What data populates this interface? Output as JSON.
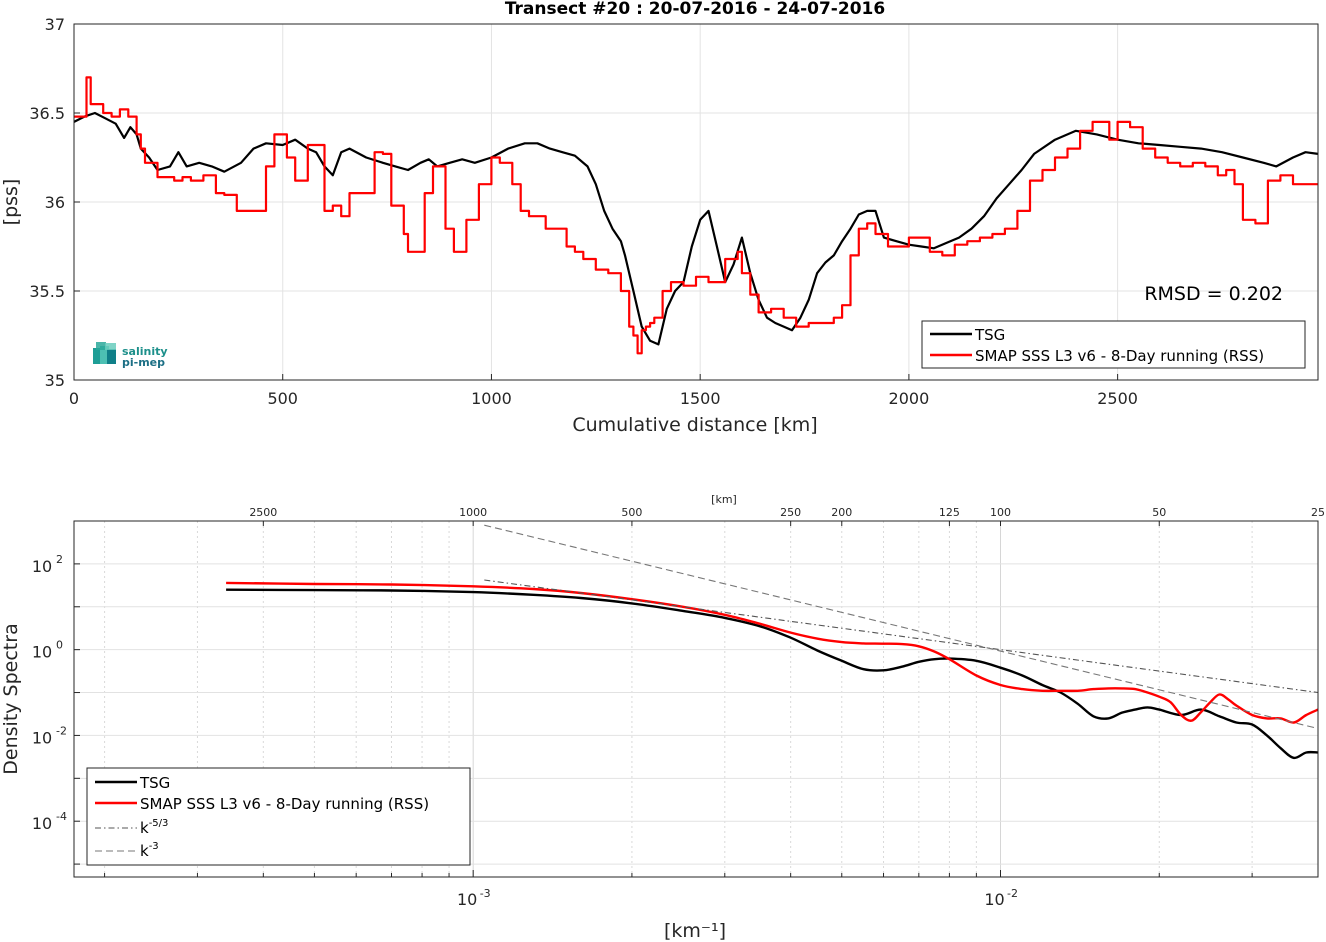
{
  "chart_data": [
    {
      "type": "line",
      "title": "Transect #20 : 20-07-2016 - 24-07-2016",
      "xlabel": "Cumulative distance [km]",
      "ylabel": "[pss]",
      "xlim": [
        0,
        2980
      ],
      "ylim": [
        35,
        37
      ],
      "xticks": [
        0,
        500,
        1000,
        1500,
        2000,
        2500
      ],
      "yticks": [
        35,
        35.5,
        36,
        36.5,
        37
      ],
      "xtick_labels": [
        "0",
        "500",
        "1000",
        "1500",
        "2000",
        "2500"
      ],
      "ytick_labels": [
        "35",
        "35.5",
        "36",
        "36.5",
        "37"
      ],
      "grid": true,
      "legend_position": "bottom-right",
      "annotation": "RMSD = 0.202",
      "logo": {
        "line1": "salinity",
        "line2": "pi-mep"
      },
      "series": [
        {
          "name": "TSG",
          "color": "#000000",
          "style": "line",
          "x": [
            0,
            25,
            50,
            75,
            100,
            120,
            135,
            150,
            160,
            180,
            200,
            230,
            250,
            270,
            300,
            330,
            360,
            400,
            430,
            460,
            500,
            530,
            560,
            580,
            600,
            620,
            640,
            660,
            700,
            740,
            770,
            800,
            830,
            850,
            870,
            900,
            930,
            960,
            1000,
            1040,
            1080,
            1110,
            1140,
            1170,
            1200,
            1230,
            1250,
            1270,
            1290,
            1310,
            1320,
            1340,
            1360,
            1380,
            1400,
            1420,
            1440,
            1460,
            1480,
            1500,
            1520,
            1540,
            1560,
            1580,
            1600,
            1620,
            1640,
            1660,
            1680,
            1700,
            1720,
            1740,
            1760,
            1780,
            1800,
            1820,
            1840,
            1860,
            1880,
            1900,
            1920,
            1940,
            1970,
            2000,
            2030,
            2060,
            2090,
            2120,
            2150,
            2180,
            2210,
            2240,
            2270,
            2300,
            2350,
            2400,
            2450,
            2500,
            2550,
            2600,
            2650,
            2700,
            2750,
            2800,
            2850,
            2880,
            2920,
            2950,
            2980
          ],
          "y": [
            36.45,
            36.48,
            36.5,
            36.47,
            36.44,
            36.36,
            36.42,
            36.38,
            36.3,
            36.25,
            36.18,
            36.2,
            36.28,
            36.2,
            36.22,
            36.2,
            36.17,
            36.22,
            36.3,
            36.33,
            36.32,
            36.35,
            36.3,
            36.28,
            36.2,
            36.15,
            36.28,
            36.3,
            36.25,
            36.22,
            36.2,
            36.18,
            36.22,
            36.24,
            36.2,
            36.22,
            36.24,
            36.22,
            36.25,
            36.3,
            36.33,
            36.33,
            36.3,
            36.28,
            36.26,
            36.2,
            36.1,
            35.95,
            35.85,
            35.78,
            35.7,
            35.5,
            35.3,
            35.22,
            35.2,
            35.4,
            35.5,
            35.55,
            35.75,
            35.9,
            35.95,
            35.75,
            35.55,
            35.65,
            35.8,
            35.6,
            35.45,
            35.35,
            35.32,
            35.3,
            35.28,
            35.35,
            35.45,
            35.6,
            35.66,
            35.7,
            35.78,
            35.85,
            35.93,
            35.95,
            35.95,
            35.8,
            35.78,
            35.76,
            35.75,
            35.74,
            35.77,
            35.8,
            35.85,
            35.92,
            36.02,
            36.1,
            36.18,
            36.27,
            36.35,
            36.4,
            36.38,
            36.35,
            36.33,
            36.32,
            36.31,
            36.3,
            36.28,
            36.25,
            36.22,
            36.2,
            36.25,
            36.28,
            36.27
          ]
        },
        {
          "name": "SMAP SSS L3 v6 - 8-Day running (RSS)",
          "color": "#ff0000",
          "style": "step",
          "x": [
            0,
            30,
            40,
            70,
            90,
            110,
            130,
            150,
            160,
            170,
            200,
            240,
            260,
            280,
            310,
            340,
            360,
            390,
            420,
            460,
            480,
            510,
            530,
            560,
            600,
            620,
            640,
            660,
            700,
            720,
            740,
            760,
            790,
            800,
            840,
            860,
            880,
            890,
            910,
            940,
            970,
            1000,
            1020,
            1050,
            1070,
            1090,
            1100,
            1130,
            1160,
            1180,
            1200,
            1220,
            1250,
            1280,
            1310,
            1330,
            1340,
            1350,
            1360,
            1370,
            1380,
            1390,
            1410,
            1430,
            1460,
            1490,
            1520,
            1560,
            1590,
            1600,
            1620,
            1640,
            1670,
            1700,
            1730,
            1760,
            1800,
            1820,
            1840,
            1860,
            1880,
            1900,
            1920,
            1950,
            2000,
            2050,
            2080,
            2110,
            2140,
            2170,
            2200,
            2230,
            2260,
            2290,
            2320,
            2350,
            2380,
            2410,
            2440,
            2480,
            2500,
            2530,
            2560,
            2590,
            2620,
            2650,
            2680,
            2710,
            2740,
            2760,
            2780,
            2800,
            2830,
            2860,
            2890,
            2920,
            2950,
            2980
          ],
          "y": [
            36.48,
            36.7,
            36.55,
            36.5,
            36.48,
            36.52,
            36.48,
            36.38,
            36.3,
            36.22,
            36.14,
            36.12,
            36.14,
            36.12,
            36.15,
            36.05,
            36.04,
            35.95,
            35.95,
            36.2,
            36.38,
            36.25,
            36.12,
            36.32,
            35.95,
            35.98,
            35.92,
            36.05,
            36.05,
            36.28,
            36.27,
            35.98,
            35.82,
            35.72,
            36.05,
            36.2,
            36.2,
            35.85,
            35.72,
            35.9,
            36.1,
            36.25,
            36.22,
            36.1,
            35.95,
            35.92,
            35.92,
            35.85,
            35.85,
            35.75,
            35.72,
            35.68,
            35.62,
            35.6,
            35.5,
            35.3,
            35.25,
            35.15,
            35.28,
            35.3,
            35.32,
            35.35,
            35.5,
            35.55,
            35.53,
            35.58,
            35.55,
            35.68,
            35.72,
            35.6,
            35.48,
            35.38,
            35.4,
            35.35,
            35.3,
            35.32,
            35.32,
            35.35,
            35.42,
            35.7,
            35.85,
            35.88,
            35.82,
            35.75,
            35.8,
            35.72,
            35.7,
            35.76,
            35.78,
            35.8,
            35.82,
            35.85,
            35.95,
            36.12,
            36.18,
            36.25,
            36.3,
            36.4,
            36.45,
            36.35,
            36.45,
            36.42,
            36.3,
            36.25,
            36.22,
            36.2,
            36.22,
            36.2,
            36.15,
            36.18,
            36.1,
            35.9,
            35.88,
            36.12,
            36.15,
            36.1,
            36.1,
            36.1
          ]
        }
      ]
    },
    {
      "type": "line",
      "xscale": "log",
      "yscale": "log",
      "xlabel": "[km⁻¹]",
      "ylabel": "Density Spectra",
      "top_axis_label": "[km]",
      "xlim": [
        0.000175,
        0.04
      ],
      "ylim": [
        5e-06,
        1000
      ],
      "xtick_labels": [
        {
          "value": 0.001,
          "base": "10",
          "exp": "-3"
        },
        {
          "value": 0.01,
          "base": "10",
          "exp": "-2"
        }
      ],
      "ytick_labels": [
        {
          "value": 100,
          "base": "10",
          "exp": "2"
        },
        {
          "value": 1,
          "base": "10",
          "exp": "0"
        },
        {
          "value": 0.01,
          "base": "10",
          "exp": "-2"
        },
        {
          "value": 0.0001,
          "base": "10",
          "exp": "-4"
        }
      ],
      "top_ticks_km": [
        2500,
        1000,
        500,
        250,
        200,
        125,
        100,
        50,
        25
      ],
      "grid": true,
      "legend_position": "bottom-left",
      "series": [
        {
          "name": "TSG",
          "color": "#000000",
          "style": "solid",
          "x": [
            0.00034,
            0.0005,
            0.0007,
            0.001,
            0.0013,
            0.0016,
            0.002,
            0.0025,
            0.003,
            0.0035,
            0.004,
            0.0045,
            0.005,
            0.0055,
            0.006,
            0.0065,
            0.007,
            0.0075,
            0.008,
            0.009,
            0.01,
            0.011,
            0.012,
            0.013,
            0.014,
            0.015,
            0.016,
            0.017,
            0.018,
            0.019,
            0.02,
            0.022,
            0.024,
            0.026,
            0.028,
            0.03,
            0.032,
            0.034,
            0.036,
            0.038,
            0.04
          ],
          "y": [
            25,
            24.5,
            24,
            22,
            19,
            16,
            12,
            8,
            5.5,
            3.5,
            1.9,
            0.95,
            0.55,
            0.35,
            0.33,
            0.4,
            0.52,
            0.6,
            0.62,
            0.55,
            0.38,
            0.25,
            0.15,
            0.1,
            0.055,
            0.028,
            0.025,
            0.034,
            0.04,
            0.045,
            0.04,
            0.03,
            0.04,
            0.028,
            0.02,
            0.018,
            0.01,
            0.005,
            0.003,
            0.004,
            0.004
          ]
        },
        {
          "name": "SMAP SSS L3 v6 - 8-Day running (RSS)",
          "color": "#ff0000",
          "style": "solid",
          "x": [
            0.00034,
            0.0005,
            0.0007,
            0.001,
            0.0013,
            0.0016,
            0.002,
            0.0025,
            0.003,
            0.0035,
            0.004,
            0.0045,
            0.005,
            0.0055,
            0.006,
            0.0065,
            0.007,
            0.0075,
            0.008,
            0.009,
            0.01,
            0.011,
            0.012,
            0.013,
            0.014,
            0.015,
            0.016,
            0.017,
            0.018,
            0.019,
            0.02,
            0.021,
            0.022,
            0.023,
            0.024,
            0.025,
            0.026,
            0.027,
            0.028,
            0.03,
            0.032,
            0.034,
            0.036,
            0.038,
            0.04
          ],
          "y": [
            36,
            34,
            33,
            30,
            26,
            21,
            15,
            10,
            6.5,
            4,
            2.5,
            1.8,
            1.5,
            1.4,
            1.38,
            1.35,
            1.2,
            0.9,
            0.6,
            0.25,
            0.15,
            0.12,
            0.11,
            0.11,
            0.11,
            0.12,
            0.125,
            0.125,
            0.12,
            0.1,
            0.08,
            0.06,
            0.03,
            0.022,
            0.035,
            0.06,
            0.09,
            0.07,
            0.05,
            0.03,
            0.025,
            0.025,
            0.02,
            0.03,
            0.04
          ]
        },
        {
          "name": "k-5/3",
          "legend_base": "k",
          "legend_exp": "-5/3",
          "color": "#555555",
          "style": "dash-dot",
          "x": [
            0.00105,
            0.04
          ],
          "y": [
            42,
            0.1
          ]
        },
        {
          "name": "k-3",
          "legend_base": "k",
          "legend_exp": "-3",
          "color": "#777777",
          "style": "dashed",
          "x": [
            0.00105,
            0.04
          ],
          "y": [
            800,
            0.0145
          ]
        }
      ]
    }
  ]
}
